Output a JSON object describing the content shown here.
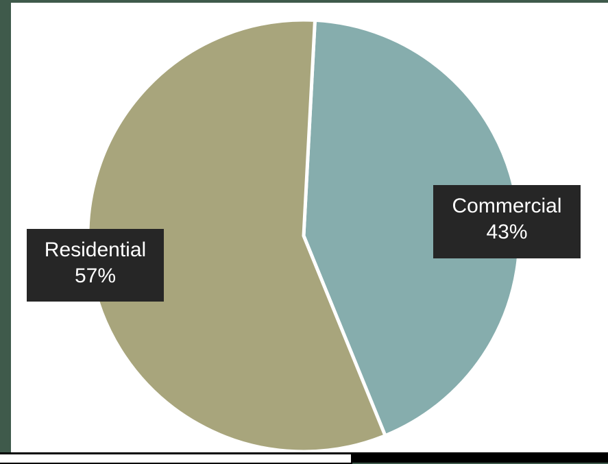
{
  "chart_data": {
    "type": "pie",
    "title": "",
    "slices": [
      {
        "label": "Commercial",
        "value": 43,
        "value_label": "43%",
        "color": "#86adad"
      },
      {
        "label": "Residential",
        "value": 57,
        "value_label": "57%",
        "color": "#a8a57c"
      }
    ],
    "start_angle_deg": 3,
    "direction": "clockwise",
    "legend": "none"
  },
  "colors": {
    "background": "#3f5a4b",
    "plot_area": "#ffffff",
    "label_box": "#262626",
    "label_text": "#ffffff"
  }
}
